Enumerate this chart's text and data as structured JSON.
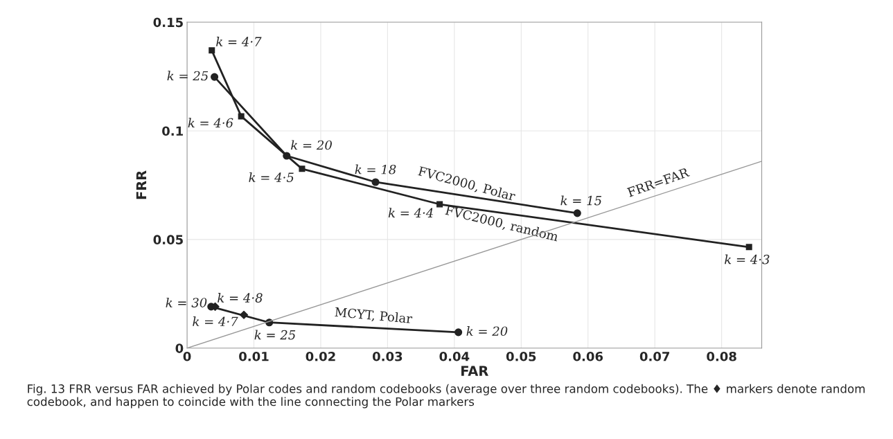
{
  "chart_data": {
    "type": "line",
    "xlabel": "FAR",
    "ylabel": "FRR",
    "xlim": [
      0,
      0.086
    ],
    "xticks": [
      0,
      0.01,
      0.02,
      0.03,
      0.04,
      0.05,
      0.06,
      0.07,
      0.08
    ],
    "ylim": [
      0,
      0.15
    ],
    "yticks": [
      0,
      0.05,
      0.1,
      0.15
    ],
    "grid": true,
    "legend": false,
    "series": [
      {
        "name": "FVC2000, Polar",
        "marker": "circle",
        "color": "#222222",
        "x": [
          0.0041,
          0.0149,
          0.0282,
          0.0584
        ],
        "values": [
          0.1248,
          0.0885,
          0.0764,
          0.0621
        ]
      },
      {
        "name": "FVC2000, random",
        "marker": "square",
        "color": "#222222",
        "x": [
          0.0037,
          0.0081,
          0.0172,
          0.0378,
          0.0841
        ],
        "values": [
          0.137,
          0.1067,
          0.0825,
          0.0662,
          0.0465
        ]
      },
      {
        "name": "MCYT, Polar",
        "marker": "circle",
        "color": "#222222",
        "x": [
          0.0036,
          0.0123,
          0.0406
        ],
        "values": [
          0.0191,
          0.0118,
          0.0073
        ]
      },
      {
        "type": "scatter",
        "marker": "diamond",
        "color": "#222222",
        "x": [
          0.0042,
          0.0085
        ],
        "values": [
          0.0191,
          0.0153
        ]
      },
      {
        "name": "FRR=FAR",
        "marker": "none",
        "color": "#999999",
        "x": [
          0,
          0.086
        ],
        "values": [
          0,
          0.086
        ]
      }
    ],
    "annotations": [
      {
        "text": "k = 4·7",
        "x": 0.0037,
        "y": 0.137
      },
      {
        "text": "k = 25",
        "x": 0.0041,
        "y": 0.1248
      },
      {
        "text": "k = 4·6",
        "x": 0.0081,
        "y": 0.1067
      },
      {
        "text": "k = 20",
        "x": 0.0149,
        "y": 0.0885
      },
      {
        "text": "k = 4·5",
        "x": 0.0172,
        "y": 0.0825
      },
      {
        "text": "k = 18",
        "x": 0.0282,
        "y": 0.0764
      },
      {
        "text": "k = 4·4",
        "x": 0.0378,
        "y": 0.0662
      },
      {
        "text": "k = 15",
        "x": 0.0584,
        "y": 0.0621
      },
      {
        "text": "k = 4·3",
        "x": 0.0841,
        "y": 0.0465
      },
      {
        "text": "k = 30",
        "x": 0.0036,
        "y": 0.0191
      },
      {
        "text": "k = 4·8",
        "x": 0.0042,
        "y": 0.0191
      },
      {
        "text": "k = 4·7",
        "x": 0.0085,
        "y": 0.0153
      },
      {
        "text": "k = 25",
        "x": 0.0123,
        "y": 0.0118
      },
      {
        "text": "k = 20",
        "x": 0.0406,
        "y": 0.0073
      },
      "Fig. 13 FRR versus FAR achieved by Polar codes and random codebooks (average over three random codebooks). The ♦ markers denote random codebook, and happen to coincide with the line connecting the Polar markers"
    ]
  }
}
